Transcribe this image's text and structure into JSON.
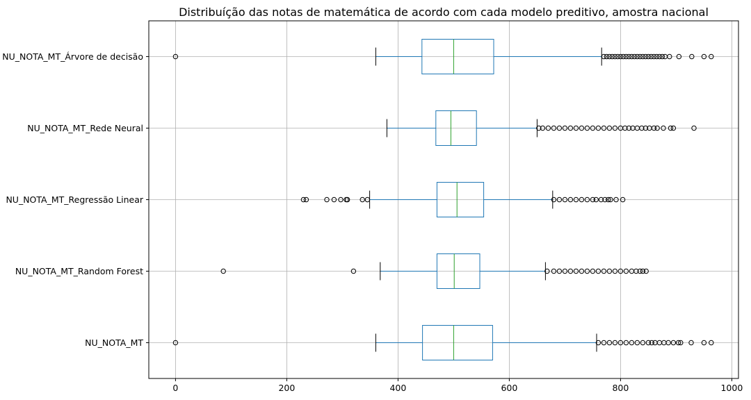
{
  "chart_data": {
    "type": "boxplot",
    "orientation": "horizontal",
    "title": "Distribuíção das notas de matemática de acordo com cada modelo preditivo, amostra nacional",
    "xlabel": "",
    "ylabel": "",
    "xlim": [
      -48,
      1012
    ],
    "xticks": [
      0,
      200,
      400,
      600,
      800,
      1000
    ],
    "xtick_labels": [
      "0",
      "200",
      "400",
      "600",
      "800",
      "1000"
    ],
    "grid": true,
    "colors": {
      "box": "#1f77b4",
      "median": "#2ca02c",
      "grid": "#b0b0b0",
      "outlier": "#000000"
    },
    "series": [
      {
        "name": "NU_NOTA_MT_Árvore de decisão",
        "whisker_low": 360,
        "q1": 443,
        "median": 500,
        "q3": 572,
        "whisker_high": 766,
        "outliers_low": [
          0
        ],
        "outliers_high": [
          770,
          775,
          780,
          785,
          790,
          795,
          800,
          805,
          810,
          815,
          820,
          825,
          830,
          835,
          840,
          845,
          850,
          855,
          860,
          865,
          870,
          875,
          880,
          888,
          905,
          928,
          950,
          963
        ]
      },
      {
        "name": "NU_NOTA_MT_Rede Neural",
        "whisker_low": 380,
        "q1": 468,
        "median": 495,
        "q3": 541,
        "whisker_high": 650,
        "outliers_low": [],
        "outliers_high": [
          653,
          660,
          670,
          680,
          690,
          700,
          710,
          720,
          730,
          740,
          750,
          760,
          770,
          780,
          790,
          800,
          808,
          815,
          822,
          830,
          838,
          845,
          852,
          860,
          866,
          877,
          890,
          895,
          932
        ]
      },
      {
        "name": "NU_NOTA_MT_Regressão Linear",
        "whisker_low": 349,
        "q1": 470,
        "median": 506,
        "q3": 554,
        "whisker_high": 678,
        "outliers_low": [
          230,
          235,
          272,
          285,
          297,
          307,
          309,
          336,
          345
        ],
        "outliers_high": [
          680,
          690,
          700,
          710,
          720,
          730,
          740,
          750,
          756,
          765,
          772,
          778,
          782,
          792,
          804
        ]
      },
      {
        "name": "NU_NOTA_MT_Random Forest",
        "whisker_low": 368,
        "q1": 470,
        "median": 501,
        "q3": 547,
        "whisker_high": 665,
        "outliers_low": [
          86,
          320
        ],
        "outliers_high": [
          668,
          680,
          690,
          700,
          710,
          720,
          730,
          740,
          750,
          760,
          770,
          780,
          790,
          800,
          810,
          820,
          828,
          835,
          840,
          846
        ]
      },
      {
        "name": "NU_NOTA_MT",
        "whisker_low": 360,
        "q1": 444,
        "median": 500,
        "q3": 570,
        "whisker_high": 757,
        "outliers_low": [
          0
        ],
        "outliers_high": [
          760,
          770,
          780,
          790,
          800,
          810,
          820,
          830,
          840,
          850,
          856,
          862,
          870,
          878,
          886,
          895,
          904,
          908,
          927,
          950,
          963
        ]
      }
    ]
  }
}
